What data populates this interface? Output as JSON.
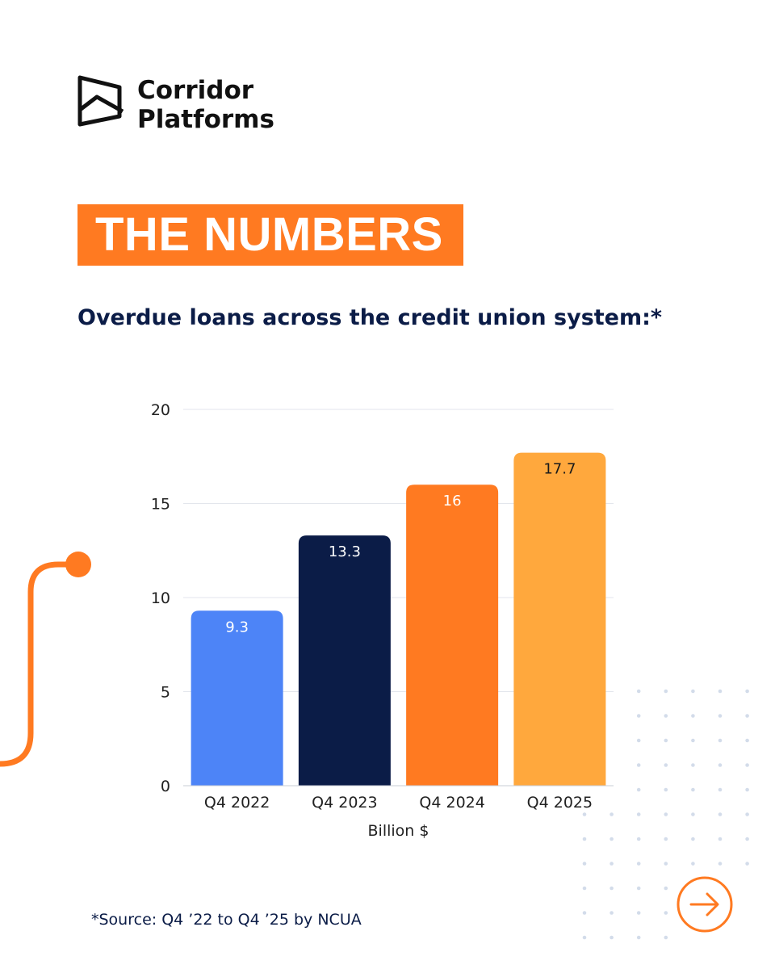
{
  "brand": {
    "name_line1": "Corridor",
    "name_line2": "Platforms"
  },
  "banner": {
    "title": "THE NUMBERS"
  },
  "subtitle": "Overdue loans across the credit union system:*",
  "footer": {
    "source": "*Source: Q4 ’22 to Q4 ’25 by NCUA",
    "next_icon": "arrow-right-circle-icon"
  },
  "colors": {
    "accent": "#FF7A21",
    "navy": "#0B1C47"
  },
  "chart_data": {
    "type": "bar",
    "categories": [
      "Q4 2022",
      "Q4 2023",
      "Q4 2024",
      "Q4 2025"
    ],
    "values": [
      9.3,
      13.3,
      16,
      17.7
    ],
    "data_labels": [
      "9.3",
      "13.3",
      "16",
      "17.7"
    ],
    "bar_colors": [
      "#4D84F7",
      "#0B1C47",
      "#FF7A21",
      "#FFA83D"
    ],
    "xlabel": "Billion $",
    "ylabel": "",
    "ylim": [
      0,
      20
    ],
    "yticks": [
      0,
      5,
      10,
      15,
      20
    ],
    "grid": true,
    "legend": "none"
  }
}
